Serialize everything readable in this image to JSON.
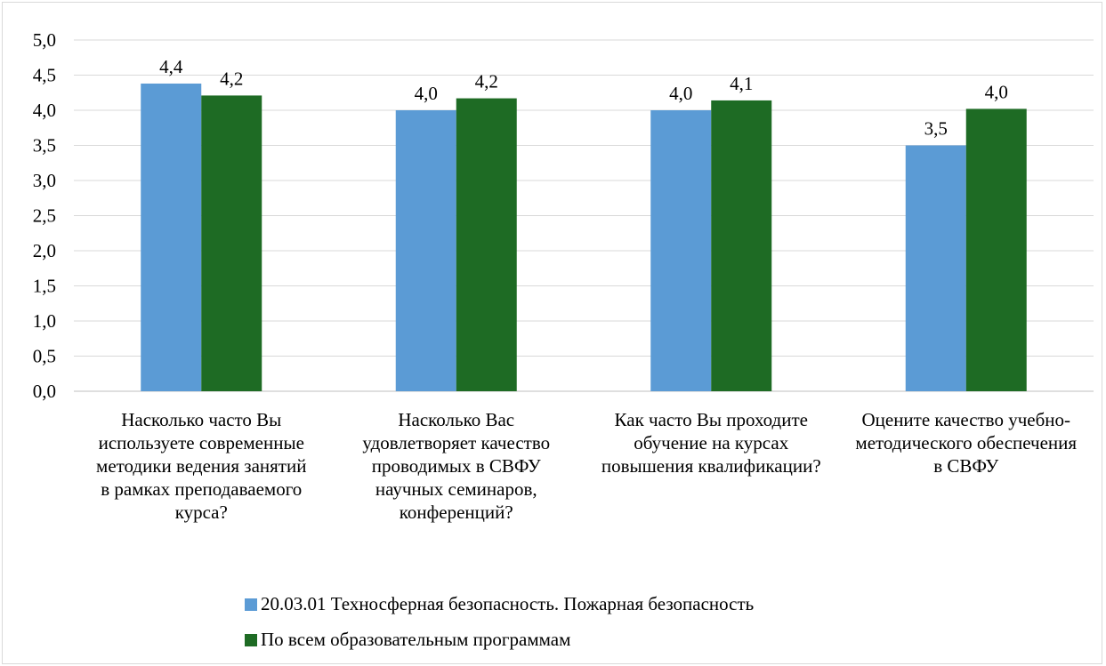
{
  "chart_data": {
    "type": "bar",
    "title": "",
    "xlabel": "",
    "ylabel": "",
    "ylim": [
      0,
      5
    ],
    "yticks": [
      "0,0",
      "0,5",
      "1,0",
      "1,5",
      "2,0",
      "2,5",
      "3,0",
      "3,5",
      "4,0",
      "4,5",
      "5,0"
    ],
    "grid": true,
    "legend_position": "bottom",
    "categories": [
      "Насколько часто Вы используете современные методики ведения занятий в рамках преподаваемого курса?",
      "Насколько Вас удовлетворяет качество проводимых в СВФУ научных семинаров, конференций?",
      "Как часто Вы проходите обучение на курсах повышения квалификации?",
      "Оцените качество учебно-методического обеспечения в СВФУ"
    ],
    "series": [
      {
        "name": "20.03.01 Техносферная безопасность. Пожарная безопасность",
        "color": "#5b9bd5",
        "values": [
          4.38,
          4.0,
          4.0,
          3.5
        ],
        "labels": [
          "4,4",
          "4,0",
          "4,0",
          "3,5"
        ]
      },
      {
        "name": "По всем образовательным программам",
        "color": "#1e6b24",
        "values": [
          4.21,
          4.17,
          4.14,
          4.02
        ],
        "labels": [
          "4,2",
          "4,2",
          "4,1",
          "4,0"
        ]
      }
    ]
  }
}
